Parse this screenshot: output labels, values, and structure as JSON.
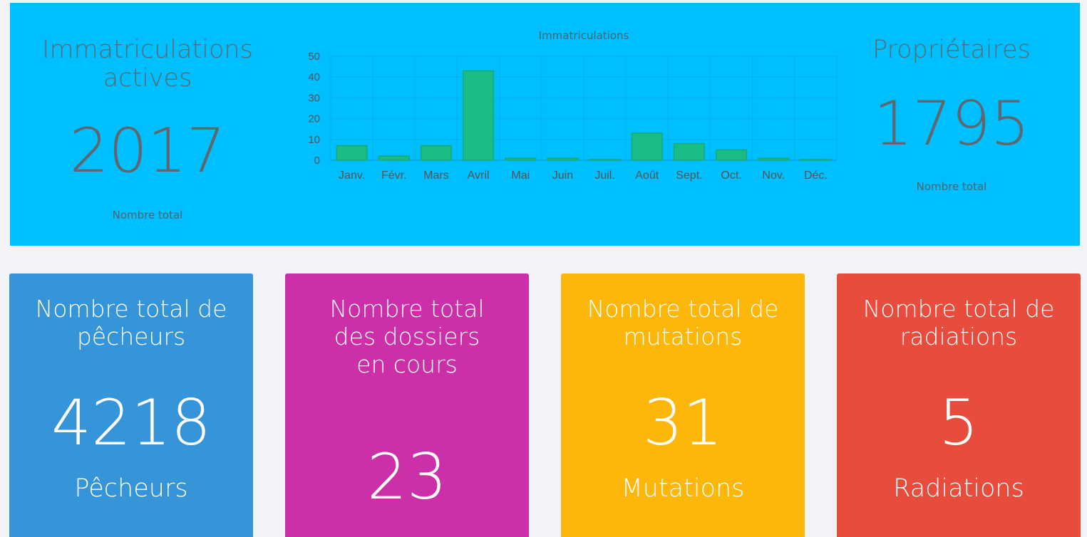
{
  "top_panel": {
    "left": {
      "title": "Immatriculations actives",
      "value": "2017",
      "caption": "Nombre total"
    },
    "right": {
      "title": "Propriétaires",
      "value": "1795",
      "caption": "Nombre total"
    }
  },
  "colors": {
    "top_panel_bg": "#00bfff",
    "bar_fill": "#1abc86",
    "card_fishers": "#3695d8",
    "card_files": "#cc30a8",
    "card_mutations": "#fdb60a",
    "card_radiations": "#e74c3c"
  },
  "cards": [
    {
      "title": "Nombre total de pêcheurs",
      "value": "4218",
      "unit": "Pêcheurs"
    },
    {
      "title": "Nombre total des dossiers en cours",
      "value": "23",
      "unit": ""
    },
    {
      "title": "Nombre total de mutations",
      "value": "31",
      "unit": "Mutations"
    },
    {
      "title": "Nombre total de radiations",
      "value": "5",
      "unit": "Radiations"
    }
  ],
  "chart_data": {
    "type": "bar",
    "title": "Immatriculations",
    "categories": [
      "Janv.",
      "Févr.",
      "Mars",
      "Avril",
      "Mai",
      "Juin",
      "Juil.",
      "Août",
      "Sept.",
      "Oct.",
      "Nov.",
      "Déc."
    ],
    "series": [
      {
        "values": [
          7,
          2,
          7,
          43,
          1,
          1,
          0.3,
          13,
          8,
          5,
          1,
          0.3
        ]
      }
    ],
    "ylim": [
      0,
      50
    ],
    "yticks": [
      0,
      10,
      20,
      30,
      40,
      50
    ],
    "grid": true,
    "xlabel": "",
    "ylabel": ""
  }
}
